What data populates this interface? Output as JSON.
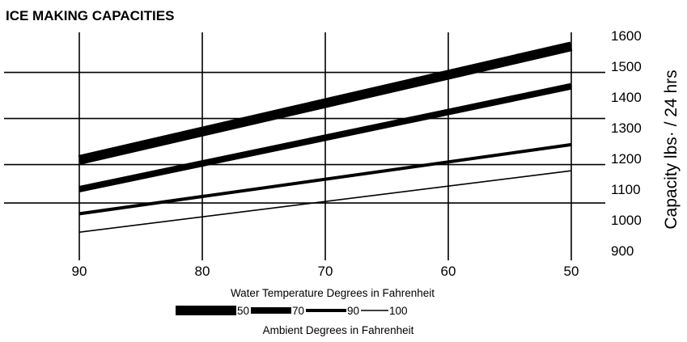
{
  "chart_data": {
    "type": "line",
    "title": "ICE MAKING CAPACITIES",
    "xlabel": "Water Temperature Degrees in Fahrenheit",
    "ylabel": "Capacity lbs· / 24 hrs",
    "legend_title": "Ambient Degrees in Fahrenheit",
    "legend_position": "bottom",
    "x_ticks": [
      90,
      80,
      70,
      60,
      50
    ],
    "x_reversed": true,
    "xlim": [
      90,
      50
    ],
    "y_ticks": [
      900,
      1000,
      1100,
      1200,
      1300,
      1400,
      1500,
      1600
    ],
    "ylim": [
      900,
      1600
    ],
    "y_axis_side": "right",
    "grid": "partial",
    "series": [
      {
        "name": "50",
        "x": [
          90,
          50
        ],
        "y": [
          1195,
          1565
        ],
        "color": "#000000",
        "weight": "heaviest"
      },
      {
        "name": "70",
        "x": [
          90,
          50
        ],
        "y": [
          1100,
          1435
        ],
        "color": "#000000",
        "weight": "heavy"
      },
      {
        "name": "90",
        "x": [
          90,
          50
        ],
        "y": [
          1020,
          1245
        ],
        "color": "#000000",
        "weight": "medium"
      },
      {
        "name": "100",
        "x": [
          90,
          50
        ],
        "y": [
          960,
          1160
        ],
        "color": "#000000",
        "weight": "thin"
      }
    ]
  }
}
